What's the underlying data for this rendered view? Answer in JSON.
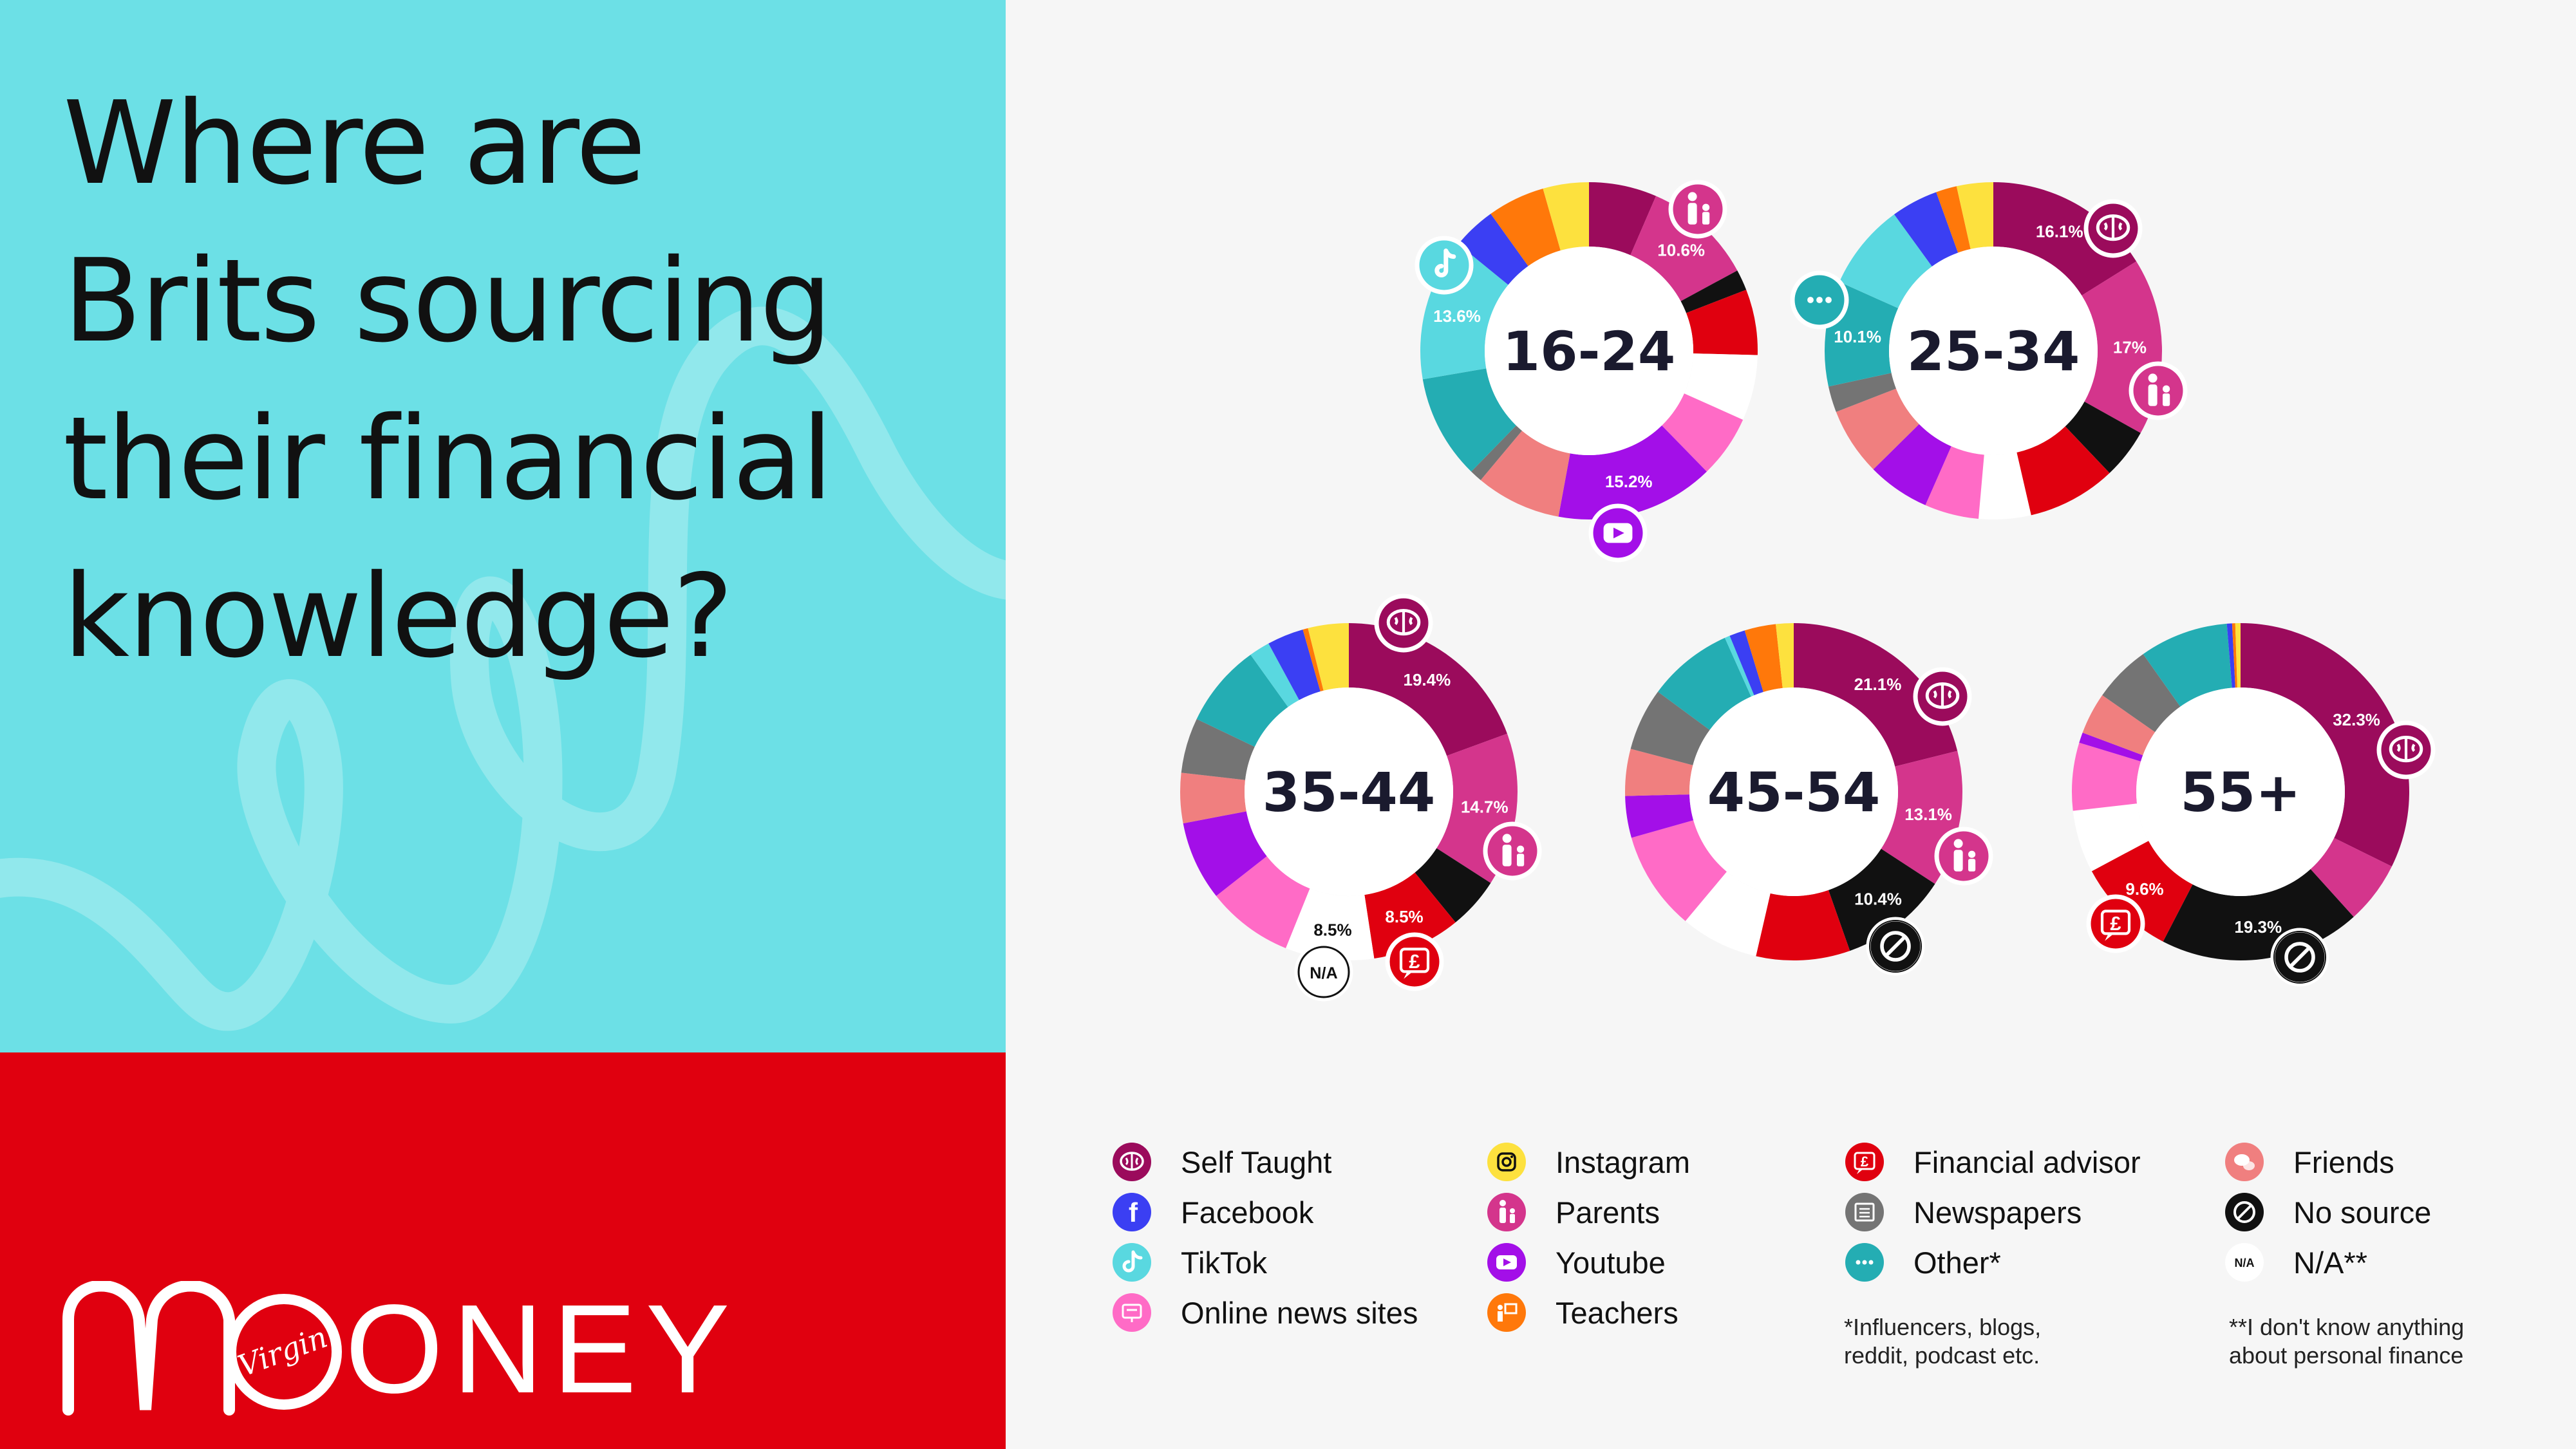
{
  "headline": {
    "lines": [
      "Where are",
      "Brits sourcing",
      "their financial",
      "knowledge?"
    ]
  },
  "brand": {
    "logo_text": "ONEY",
    "logo_script": "Virgin"
  },
  "colors": {
    "left_background": "#6ce0e6",
    "brand_red": "#e0000f",
    "Self Taught": "#9b0b5c",
    "Parents": "#d4358c",
    "Instagram": "#fde13e",
    "Facebook": "#3b3ff3",
    "TikTok": "#59d8e0",
    "Online news sites": "#ff6bc6",
    "Youtube": "#a30fe8",
    "Teachers": "#ff780a",
    "Financial advisor": "#e0000f",
    "Newspapers": "#747474",
    "Other*": "#24adb3",
    "Friends": "#f07f7f",
    "No source": "#111111",
    "N/A**": "#ffffff"
  },
  "legend": {
    "items": [
      {
        "label": "Self Taught",
        "icon": "brain-icon"
      },
      {
        "label": "Facebook",
        "icon": "facebook-icon"
      },
      {
        "label": "TikTok",
        "icon": "tiktok-icon"
      },
      {
        "label": "Online news sites",
        "icon": "news-screen-icon"
      },
      {
        "label": "Instagram",
        "icon": "instagram-icon"
      },
      {
        "label": "Parents",
        "icon": "parent-child-icon"
      },
      {
        "label": "Youtube",
        "icon": "youtube-icon"
      },
      {
        "label": "Teachers",
        "icon": "teacher-icon"
      },
      {
        "label": "Financial advisor",
        "icon": "pound-chat-icon"
      },
      {
        "label": "Newspapers",
        "icon": "newspaper-icon"
      },
      {
        "label": "Other*",
        "icon": "dots-icon"
      },
      {
        "label": "Friends",
        "icon": "speech-bubbles-icon"
      },
      {
        "label": "No source",
        "icon": "no-entry-icon"
      },
      {
        "label": "N/A**",
        "icon": "na-text-icon",
        "icon_text": "N/A"
      }
    ],
    "note_other": "*Influencers, blogs, reddit, podcast etc.",
    "note_na": "**I don't know anything about personal finance"
  },
  "chart_data": [
    {
      "type": "pie",
      "title": "16-24",
      "categories": [
        "Self Taught",
        "Parents",
        "No source",
        "Financial advisor",
        "N/A**",
        "Online news sites",
        "Youtube",
        "Friends",
        "Newspapers",
        "Other*",
        "TikTok",
        "Facebook",
        "Teachers",
        "Instagram"
      ],
      "values": [
        6.5,
        10.6,
        2.0,
        6.3,
        6.3,
        6.0,
        15.2,
        8.2,
        1.2,
        10.0,
        13.6,
        4.2,
        5.5,
        4.4
      ],
      "labels_shown": {
        "Parents": "10.6%",
        "Youtube": "15.2%",
        "TikTok": "13.6%"
      }
    },
    {
      "type": "pie",
      "title": "25-34",
      "categories": [
        "Self Taught",
        "Parents",
        "No source",
        "Financial advisor",
        "N/A**",
        "Online news sites",
        "Youtube",
        "Friends",
        "Newspapers",
        "Other*",
        "TikTok",
        "Facebook",
        "Teachers",
        "Instagram"
      ],
      "values": [
        16.1,
        17.0,
        4.8,
        8.5,
        5.0,
        5.2,
        6.0,
        6.5,
        2.5,
        10.1,
        8.3,
        4.5,
        2.0,
        3.5
      ],
      "labels_shown": {
        "Self Taught": "16.1%",
        "Parents": "17%",
        "Other*": "10.1%"
      }
    },
    {
      "type": "pie",
      "title": "35-44",
      "categories": [
        "Self Taught",
        "Parents",
        "No source",
        "Financial advisor",
        "N/A**",
        "Online news sites",
        "Youtube",
        "Friends",
        "Newspapers",
        "Other*",
        "TikTok",
        "Facebook",
        "Teachers",
        "Instagram"
      ],
      "values": [
        19.4,
        14.7,
        5.0,
        8.5,
        8.5,
        8.3,
        7.6,
        4.8,
        5.3,
        8.0,
        2.0,
        3.5,
        0.5,
        3.9
      ],
      "labels_shown": {
        "Self Taught": "19.4%",
        "Parents": "14.7%",
        "Financial advisor": "8.5%",
        "N/A**": "8.5%"
      }
    },
    {
      "type": "pie",
      "title": "45-54",
      "categories": [
        "Self Taught",
        "Parents",
        "No source",
        "Financial advisor",
        "N/A**",
        "Online news sites",
        "Youtube",
        "Friends",
        "Newspapers",
        "Other*",
        "TikTok",
        "Facebook",
        "Teachers",
        "Instagram"
      ],
      "values": [
        21.1,
        13.1,
        10.4,
        9.0,
        7.5,
        9.5,
        4.0,
        4.5,
        6.0,
        8.2,
        0.5,
        1.5,
        3.0,
        1.7
      ],
      "labels_shown": {
        "Self Taught": "21.1%",
        "Parents": "13.1%",
        "No source": "10.4%"
      }
    },
    {
      "type": "pie",
      "title": "55+",
      "categories": [
        "Self Taught",
        "Parents",
        "No source",
        "Financial advisor",
        "N/A**",
        "Online news sites",
        "Youtube",
        "Friends",
        "Newspapers",
        "Other*",
        "TikTok",
        "Facebook",
        "Teachers",
        "Instagram"
      ],
      "values": [
        32.3,
        6.0,
        19.3,
        9.6,
        6.0,
        6.5,
        1.0,
        4.0,
        5.5,
        8.5,
        0,
        0.5,
        0.3,
        0.5
      ],
      "labels_shown": {
        "Self Taught": "32.3%",
        "No source": "19.3%",
        "Financial advisor": "9.6%"
      }
    }
  ]
}
